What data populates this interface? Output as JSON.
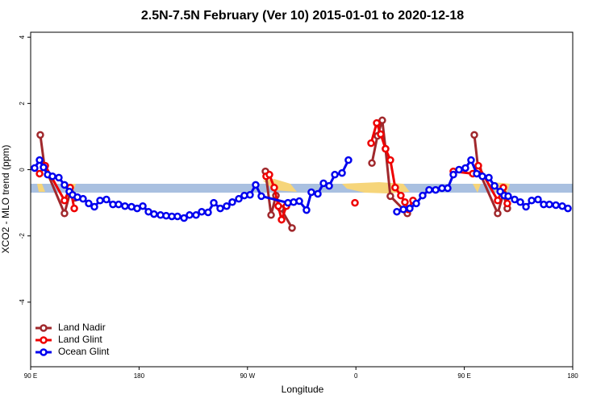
{
  "chart_data": {
    "type": "line",
    "title": "2.5N-7.5N February (Ver 10)   2015-01-01 to 2020-12-18",
    "x_label": "Longitude",
    "y_label": "XCO2 - MLO trend (ppm)",
    "xlim": [
      90,
      540
    ],
    "ylim": [
      -5.95,
      4.15
    ],
    "xticks": [
      {
        "value": 90,
        "label": "90 E"
      },
      {
        "value": 180,
        "label": "180"
      },
      {
        "value": 270,
        "label": "90 W"
      },
      {
        "value": 360,
        "label": "0"
      },
      {
        "value": 450,
        "label": "90 E"
      },
      {
        "value": 540,
        "label": "180"
      }
    ],
    "yticks": [
      -4,
      -2,
      0,
      2,
      4
    ],
    "legend": "bottom-left",
    "series": [
      {
        "name": "Land Nadir",
        "color": "#a0282c",
        "x": [
          98.0,
          101.4,
          118.1,
          122.8,
          126.8,
          200,
          284.9,
          289.6,
          293.6,
          297.6,
          307.0,
          340,
          373.3,
          377.9,
          381.9,
          384.6,
          388.6,
          402.7,
          430,
          458.3,
          461.6,
          477.7,
          482.4,
          485.7
        ],
        "values": [
          1.05,
          0.12,
          -1.32,
          -0.68,
          -0.85,
          null,
          -0.05,
          -1.37,
          -0.78,
          -1.17,
          -1.76,
          null,
          0.2,
          1.02,
          1.49,
          0.63,
          -0.8,
          -1.32,
          null,
          1.05,
          0.0,
          -1.32,
          -0.73,
          -1.17
        ]
      },
      {
        "name": "Land Glint",
        "color": "#ee0000",
        "x": [
          97.4,
          102.1,
          118.1,
          122.8,
          126.2,
          200,
          285.5,
          288.2,
          292.2,
          295.6,
          298.3,
          302.3,
          320,
          359.2,
          365,
          372.6,
          377.3,
          380.6,
          384.6,
          388.6,
          392.6,
          397.3,
          400.7,
          403.4,
          407.4,
          430,
          440.9,
          457.0,
          461.6,
          477.7,
          482.4,
          485.7
        ],
        "values": [
          -0.12,
          0.12,
          -0.93,
          -0.54,
          -1.17,
          null,
          -0.2,
          -0.15,
          -0.54,
          -1.1,
          -1.51,
          -1.1,
          null,
          -1.0,
          null,
          0.8,
          1.41,
          1.07,
          0.63,
          0.29,
          -0.54,
          -0.78,
          -0.98,
          -1.2,
          -0.93,
          null,
          -0.05,
          -0.12,
          0.12,
          -0.93,
          -0.54,
          -1.02
        ]
      },
      {
        "name": "Ocean Glint",
        "color": "#0000ee",
        "x": [
          93.3,
          97.4,
          100.7,
          104.1,
          108.1,
          113.4,
          118.1,
          122.1,
          124.8,
          128.8,
          133.5,
          138.2,
          142.9,
          147.6,
          152.9,
          158.3,
          163.0,
          168.3,
          173.7,
          178.4,
          183.1,
          187.8,
          192.4,
          197.8,
          202.5,
          207.2,
          211.9,
          217.3,
          221.9,
          227.3,
          232.0,
          237.3,
          242.0,
          247.4,
          252.7,
          257.4,
          262.8,
          267.4,
          272.1,
          276.8,
          281.5,
          303.6,
          308.3,
          313.0,
          319.0,
          323.0,
          328.4,
          333.1,
          337.8,
          342.5,
          348.5,
          353.8,
          370,
          394.0,
          399.4,
          404.7,
          410.1,
          415.4,
          420.8,
          426.2,
          431.5,
          436.2,
          440.9,
          445.6,
          450.9,
          455.6,
          460.3,
          465.0,
          470.4,
          475.1,
          479.8,
          483.1,
          486.4,
          491.8,
          496.5,
          501.2,
          505.9,
          511.2,
          515.9,
          520.6,
          526.0,
          531.3,
          536.0
        ],
        "values": [
          0.05,
          0.29,
          0.07,
          -0.15,
          -0.2,
          -0.24,
          -0.46,
          -0.66,
          -0.76,
          -0.83,
          -0.88,
          -1.02,
          -1.12,
          -0.93,
          -0.9,
          -1.05,
          -1.05,
          -1.1,
          -1.12,
          -1.17,
          -1.1,
          -1.27,
          -1.34,
          -1.37,
          -1.39,
          -1.41,
          -1.41,
          -1.46,
          -1.37,
          -1.37,
          -1.27,
          -1.29,
          -1.0,
          -1.17,
          -1.1,
          -0.98,
          -0.88,
          -0.78,
          -0.76,
          -0.46,
          -0.8,
          -1.0,
          -0.98,
          -0.95,
          -1.22,
          -0.68,
          -0.73,
          -0.41,
          -0.49,
          -0.15,
          -0.1,
          0.29,
          null,
          -1.27,
          -1.2,
          -1.17,
          -1.02,
          -0.78,
          -0.61,
          -0.61,
          -0.56,
          -0.56,
          -0.15,
          0.0,
          0.05,
          0.29,
          -0.12,
          -0.2,
          -0.24,
          -0.49,
          -0.66,
          -0.78,
          -0.8,
          -0.9,
          -0.98,
          -1.12,
          -0.93,
          -0.9,
          -1.05,
          -1.05,
          -1.07,
          -1.1,
          -1.17
        ]
      }
    ]
  }
}
